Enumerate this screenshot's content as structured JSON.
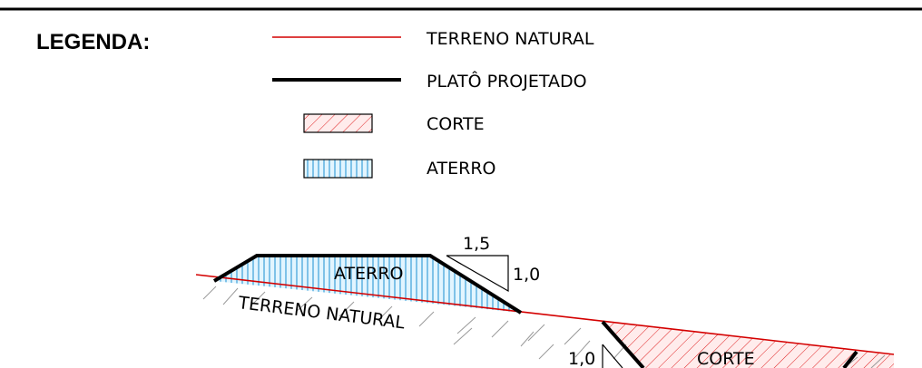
{
  "legend": {
    "title": "LEGENDA:",
    "items": [
      {
        "label": "TERRENO NATURAL",
        "symbol": "red-thin-line"
      },
      {
        "label": "PLATÔ PROJETADO",
        "symbol": "black-thick-line"
      },
      {
        "label": "CORTE",
        "symbol": "red-diagonal-hatch"
      },
      {
        "label": "ATERRO",
        "symbol": "blue-vertical-hatch"
      }
    ]
  },
  "section": {
    "fill_label": "ATERRO",
    "cut_label": "CORTE",
    "ground_label": "TERRENO NATURAL",
    "slope_fill": {
      "horizontal": "1,5",
      "vertical": "1,0"
    },
    "slope_cut": {
      "vertical": "1,0"
    }
  },
  "colors": {
    "terrain_line": "#d40000",
    "platform_line": "#000000",
    "cut_hatch": "#e02020",
    "cut_fill": "#ffecec",
    "fill_hatch": "#1a8fd0",
    "fill_fill": "#e2f5ff",
    "ground_hatch": "#9a9a9a"
  }
}
